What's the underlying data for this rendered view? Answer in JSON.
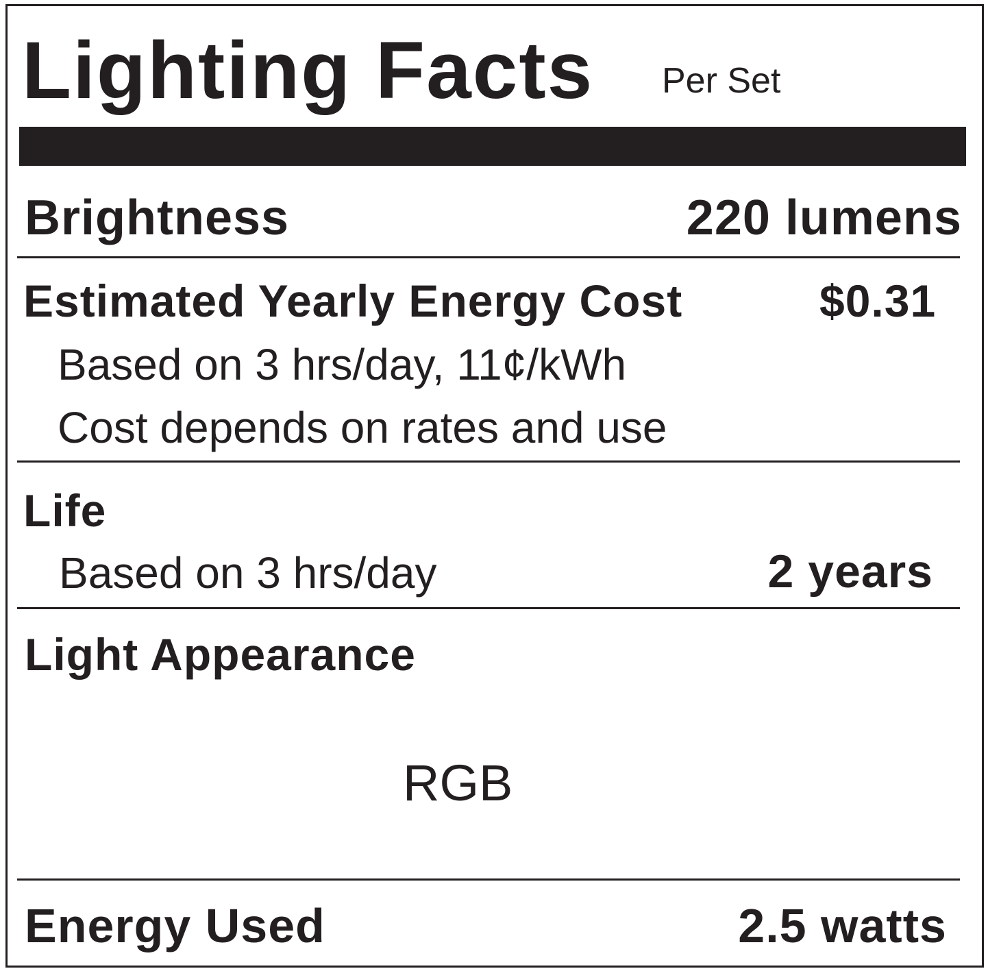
{
  "title": "Lighting Facts",
  "subtitle": "Per Set",
  "brightness": {
    "label": "Brightness",
    "value": "220 lumens"
  },
  "energy_cost": {
    "label": "Estimated Yearly Energy Cost",
    "value": "$0.31",
    "note1": "Based on 3 hrs/day, 11¢/kWh",
    "note2": "Cost depends on rates and use"
  },
  "life": {
    "label": "Life",
    "note": "Based on 3 hrs/day",
    "value": "2 years"
  },
  "light_appearance": {
    "label": "Light Appearance",
    "value": "RGB"
  },
  "energy_used": {
    "label": "Energy Used",
    "value": "2.5 watts"
  }
}
